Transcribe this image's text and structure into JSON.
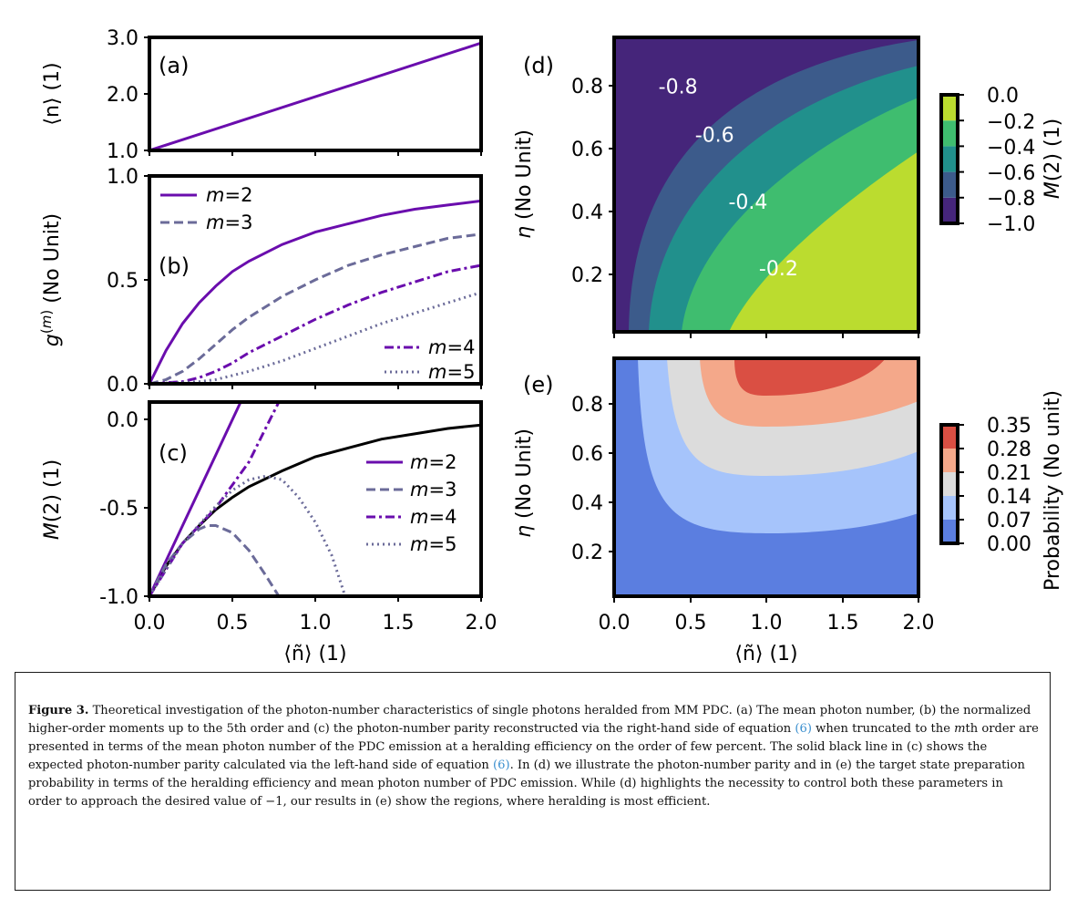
{
  "panels": {
    "a": {
      "label": "(a)",
      "ylabel": "⟨n⟩ (1)",
      "yticks": [
        "1.0",
        "2.0",
        "3.0"
      ],
      "ylim": [
        1.0,
        3.0
      ],
      "xlim": [
        0,
        2
      ],
      "series": [
        {
          "points": [
            [
              0,
              1.0
            ],
            [
              2,
              2.9
            ]
          ],
          "color": "#6a0dad",
          "dash": "solid"
        }
      ]
    },
    "b": {
      "label": "(b)",
      "ylabel": "g^(m) (No Unit)",
      "yticks": [
        "0.0",
        "0.5",
        "1.0"
      ],
      "ylim": [
        0,
        1
      ],
      "xlim": [
        0,
        2
      ],
      "legend": [
        {
          "m": "2",
          "color": "#6a0dad",
          "dash": "solid"
        },
        {
          "m": "3",
          "color": "#6b6b99",
          "dash": "dashed"
        },
        {
          "m": "4",
          "color": "#6a0dad",
          "dash": "dashdot"
        },
        {
          "m": "5",
          "color": "#6b6b99",
          "dash": "dotted"
        }
      ],
      "series": [
        {
          "m": 2,
          "color": "#6a0dad",
          "dash": "solid",
          "points": [
            [
              0,
              0
            ],
            [
              0.1,
              0.16
            ],
            [
              0.2,
              0.29
            ],
            [
              0.3,
              0.39
            ],
            [
              0.4,
              0.47
            ],
            [
              0.5,
              0.54
            ],
            [
              0.6,
              0.59
            ],
            [
              0.8,
              0.67
            ],
            [
              1.0,
              0.73
            ],
            [
              1.2,
              0.77
            ],
            [
              1.4,
              0.81
            ],
            [
              1.6,
              0.84
            ],
            [
              1.8,
              0.86
            ],
            [
              2.0,
              0.88
            ]
          ]
        },
        {
          "m": 3,
          "color": "#6b6b99",
          "dash": "dashed",
          "points": [
            [
              0,
              0
            ],
            [
              0.1,
              0.02
            ],
            [
              0.2,
              0.06
            ],
            [
              0.3,
              0.12
            ],
            [
              0.4,
              0.19
            ],
            [
              0.5,
              0.26
            ],
            [
              0.6,
              0.32
            ],
            [
              0.8,
              0.42
            ],
            [
              1.0,
              0.5
            ],
            [
              1.2,
              0.57
            ],
            [
              1.4,
              0.62
            ],
            [
              1.6,
              0.66
            ],
            [
              1.8,
              0.7
            ],
            [
              2.0,
              0.72
            ]
          ]
        },
        {
          "m": 4,
          "color": "#6a0dad",
          "dash": "dashdot",
          "points": [
            [
              0,
              0
            ],
            [
              0.2,
              0.01
            ],
            [
              0.3,
              0.03
            ],
            [
              0.4,
              0.06
            ],
            [
              0.5,
              0.1
            ],
            [
              0.6,
              0.15
            ],
            [
              0.8,
              0.23
            ],
            [
              1.0,
              0.31
            ],
            [
              1.2,
              0.38
            ],
            [
              1.4,
              0.44
            ],
            [
              1.6,
              0.49
            ],
            [
              1.8,
              0.54
            ],
            [
              2.0,
              0.57
            ]
          ]
        },
        {
          "m": 5,
          "color": "#6b6b99",
          "dash": "dotted",
          "points": [
            [
              0,
              0
            ],
            [
              0.3,
              0.01
            ],
            [
              0.4,
              0.02
            ],
            [
              0.5,
              0.04
            ],
            [
              0.6,
              0.06
            ],
            [
              0.8,
              0.11
            ],
            [
              1.0,
              0.17
            ],
            [
              1.2,
              0.23
            ],
            [
              1.4,
              0.29
            ],
            [
              1.6,
              0.34
            ],
            [
              1.8,
              0.39
            ],
            [
              2.0,
              0.44
            ]
          ]
        }
      ]
    },
    "c": {
      "label": "(c)",
      "ylabel": "M(2) (1)",
      "yticks": [
        "-1.0",
        "-0.5",
        "0.0"
      ],
      "ylim": [
        -1.0,
        0.1
      ],
      "xlim": [
        0,
        2
      ],
      "xticks": [
        "0.0",
        "0.5",
        "1.0",
        "1.5",
        "2.0"
      ],
      "xlabel": "⟨ñ⟩ (1)",
      "legend": [
        {
          "m": "2",
          "color": "#6a0dad",
          "dash": "solid"
        },
        {
          "m": "3",
          "color": "#6b6b99",
          "dash": "dashed"
        },
        {
          "m": "4",
          "color": "#6a0dad",
          "dash": "dashdot"
        },
        {
          "m": "5",
          "color": "#6b6b99",
          "dash": "dotted"
        }
      ],
      "series": [
        {
          "m": "exact",
          "color": "#000000",
          "dash": "solid",
          "points": [
            [
              0,
              -1.0
            ],
            [
              0.1,
              -0.83
            ],
            [
              0.2,
              -0.7
            ],
            [
              0.3,
              -0.6
            ],
            [
              0.4,
              -0.51
            ],
            [
              0.5,
              -0.44
            ],
            [
              0.6,
              -0.38
            ],
            [
              0.8,
              -0.29
            ],
            [
              1.0,
              -0.21
            ],
            [
              1.2,
              -0.16
            ],
            [
              1.4,
              -0.11
            ],
            [
              1.6,
              -0.08
            ],
            [
              1.8,
              -0.05
            ],
            [
              2.0,
              -0.03
            ]
          ]
        },
        {
          "m": 2,
          "color": "#6a0dad",
          "dash": "solid",
          "points": [
            [
              0,
              -1.0
            ],
            [
              0.2,
              -0.6
            ],
            [
              0.4,
              -0.2
            ],
            [
              0.5,
              0.0
            ],
            [
              0.55,
              0.1
            ]
          ]
        },
        {
          "m": 3,
          "color": "#6b6b99",
          "dash": "dashed",
          "points": [
            [
              0,
              -1.0
            ],
            [
              0.1,
              -0.82
            ],
            [
              0.2,
              -0.7
            ],
            [
              0.3,
              -0.62
            ],
            [
              0.35,
              -0.6
            ],
            [
              0.4,
              -0.6
            ],
            [
              0.5,
              -0.64
            ],
            [
              0.6,
              -0.74
            ],
            [
              0.7,
              -0.88
            ],
            [
              0.78,
              -1.0
            ]
          ]
        },
        {
          "m": 4,
          "color": "#6a0dad",
          "dash": "dashdot",
          "points": [
            [
              0,
              -1.0
            ],
            [
              0.2,
              -0.7
            ],
            [
              0.4,
              -0.5
            ],
            [
              0.6,
              -0.24
            ],
            [
              0.7,
              -0.05
            ],
            [
              0.78,
              0.1
            ]
          ]
        },
        {
          "m": 5,
          "color": "#6b6b99",
          "dash": "dotted",
          "points": [
            [
              0,
              -1.0
            ],
            [
              0.2,
              -0.7
            ],
            [
              0.4,
              -0.49
            ],
            [
              0.5,
              -0.4
            ],
            [
              0.6,
              -0.34
            ],
            [
              0.7,
              -0.32
            ],
            [
              0.8,
              -0.34
            ],
            [
              0.9,
              -0.44
            ],
            [
              1.0,
              -0.58
            ],
            [
              1.1,
              -0.77
            ],
            [
              1.18,
              -1.0
            ]
          ]
        }
      ]
    },
    "d": {
      "label": "(d)",
      "ylabel": "η (No Unit)",
      "yticks": [
        "0.2",
        "0.4",
        "0.6",
        "0.8"
      ],
      "ylim": [
        0,
        0.97
      ],
      "xlim": [
        0,
        2
      ],
      "contour_labels": [
        {
          "text": "-0.8",
          "x": 0.42,
          "y": 0.81
        },
        {
          "text": "-0.6",
          "x": 0.66,
          "y": 0.65
        },
        {
          "text": "-0.4",
          "x": 0.88,
          "y": 0.43
        },
        {
          "text": "-0.2",
          "x": 1.08,
          "y": 0.21
        }
      ],
      "levels": [
        -1.0,
        -0.8,
        -0.6,
        -0.4,
        -0.2,
        0.0
      ],
      "colors": [
        "#45257a",
        "#3c5b8b",
        "#21908c",
        "#3fbd6f",
        "#bbdc2f"
      ],
      "colorbar": {
        "label": "M(2) (1)",
        "ticks": [
          "0.0",
          "−0.2",
          "−0.4",
          "−0.6",
          "−0.8",
          "−1.0"
        ]
      }
    },
    "e": {
      "label": "(e)",
      "ylabel": "η (No Unit)",
      "yticks": [
        "0.2",
        "0.4",
        "0.6",
        "0.8"
      ],
      "xticks": [
        "0.0",
        "0.5",
        "1.0",
        "1.5",
        "2.0"
      ],
      "xlabel": "⟨ñ⟩ (1)",
      "ylim": [
        0,
        0.97
      ],
      "xlim": [
        0,
        2
      ],
      "levels": [
        0.0,
        0.07,
        0.14,
        0.21,
        0.28,
        0.35
      ],
      "colors": [
        "#5b7ee0",
        "#a6c4fb",
        "#dcdcdc",
        "#f4a88a",
        "#da4f43"
      ],
      "colorbar": {
        "label": "Probability (No unit)",
        "ticks": [
          "0.35",
          "0.28",
          "0.21",
          "0.14",
          "0.07",
          "0.00"
        ]
      }
    }
  },
  "caption": {
    "label": "Figure 3.",
    "t1": " Theoretical investigation of the photon-number characteristics of single photons heralded from MM PDC. (a) The mean photon number, (b) the normalized higher-order moments up to the 5th order and (c) the photon-number parity reconstructed via the right-hand side of equation ",
    "r1": "(6)",
    "t2": " when truncated to the ",
    "em": "m",
    "t3": "th order are presented in terms of the mean photon number of the PDC emission at a heralding efficiency on the order of few percent. The solid black line in (c) shows the expected photon-number parity calculated via the left-hand side of equation ",
    "r2": "(6)",
    "t4": ". In (d) we illustrate the photon-number parity and in (e) the target state preparation probability in terms of the heralding efficiency and mean photon number of PDC emission. While (d) highlights the necessity to control both these parameters in order to approach the desired value of −1, our results in (e) show the regions, where heralding is most efficient."
  }
}
